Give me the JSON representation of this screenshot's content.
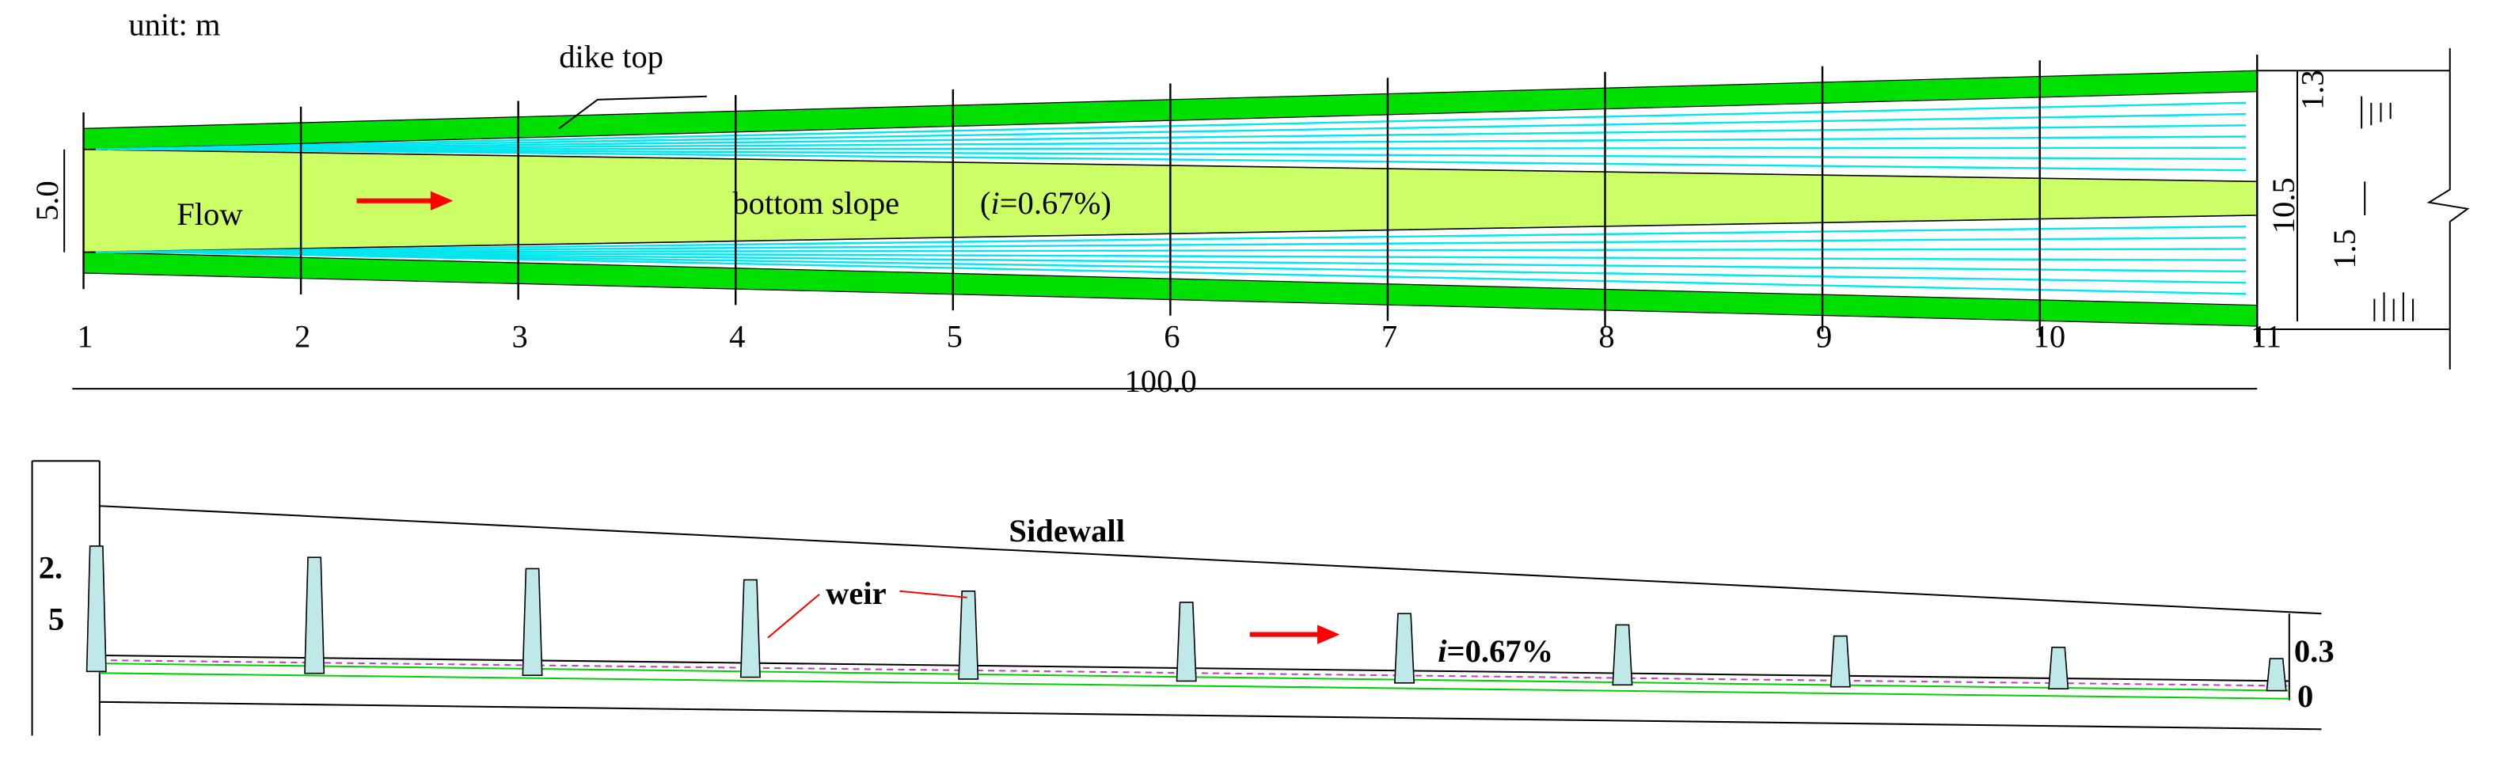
{
  "plan": {
    "unit": "unit: m",
    "dike_label": "dike top",
    "flow_label": "Flow",
    "slope_label": "bottom slope",
    "slope_parts": [
      "(",
      "i",
      "=0.67%)"
    ],
    "sections": [
      "1",
      "2",
      "3",
      "4",
      "5",
      "6",
      "7",
      "8",
      "9",
      "10",
      "11"
    ],
    "length": "100.0",
    "left_width": "5.0",
    "right_dims": [
      "1.3",
      "10.5",
      "1.5"
    ]
  },
  "profile": {
    "sidewall_label": "Sidewall",
    "weir_label": "weir",
    "slope_parts": [
      "i",
      "=0.67%"
    ],
    "height_lines": [
      "2.",
      "5"
    ],
    "right_dims": [
      "0.3",
      "0"
    ]
  }
}
